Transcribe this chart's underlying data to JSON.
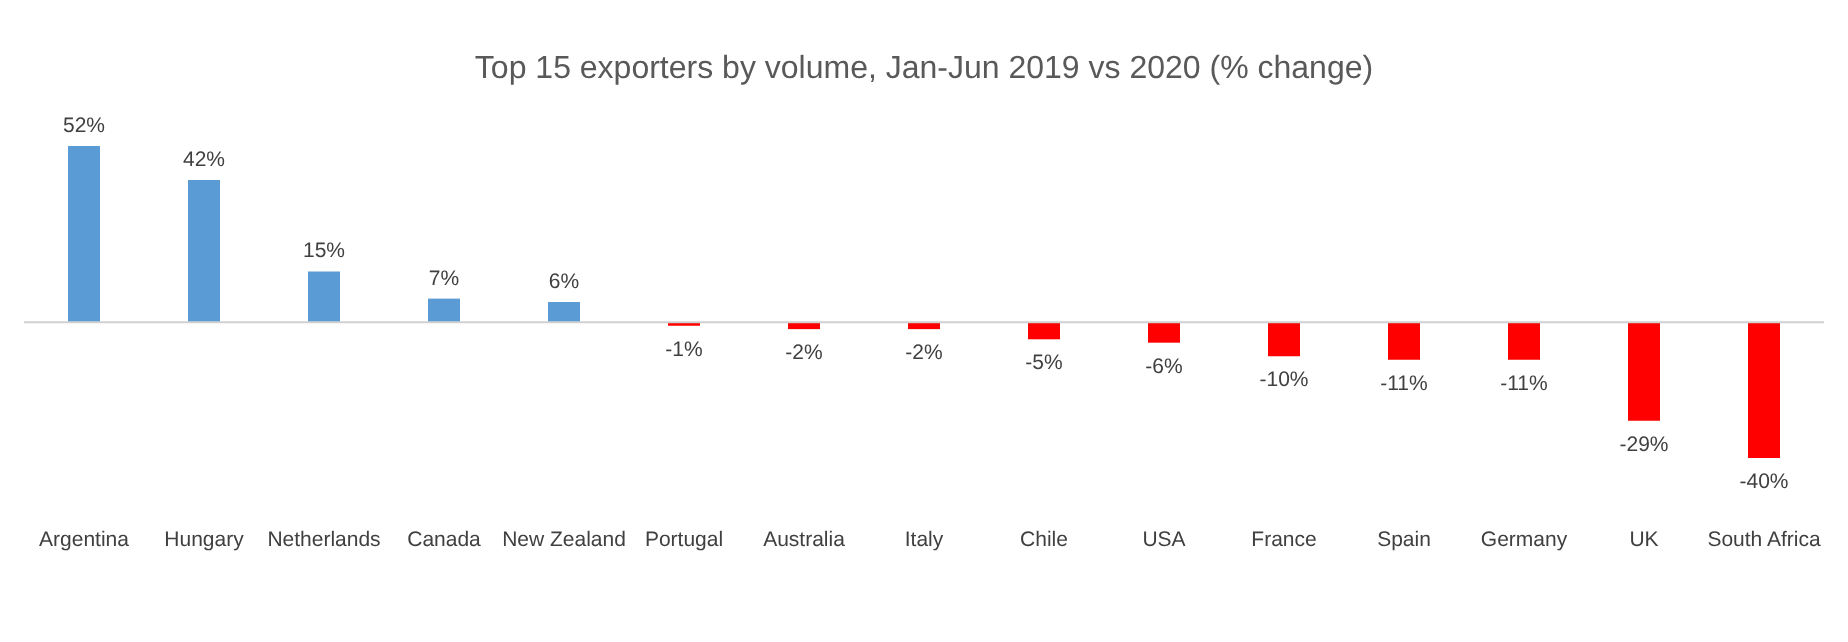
{
  "chart_data": {
    "type": "bar",
    "title": "Top 15 exporters by volume, Jan-Jun 2019 vs 2020 (% change)",
    "categories": [
      "Argentina",
      "Hungary",
      "Netherlands",
      "Canada",
      "New Zealand",
      "Portugal",
      "Australia",
      "Italy",
      "Chile",
      "USA",
      "France",
      "Spain",
      "Germany",
      "UK",
      "South Africa"
    ],
    "values": [
      52,
      42,
      15,
      7,
      6,
      -1,
      -2,
      -2,
      -5,
      -6,
      -10,
      -11,
      -11,
      -29,
      -40
    ],
    "value_labels": [
      "52%",
      "42%",
      "15%",
      "7%",
      "6%",
      "-1%",
      "-2%",
      "-2%",
      "-5%",
      "-6%",
      "-10%",
      "-11%",
      "-11%",
      "-29%",
      "-40%"
    ],
    "colors": [
      "#5b9bd5",
      "#5b9bd5",
      "#5b9bd5",
      "#5b9bd5",
      "#5b9bd5",
      "#ff0000",
      "#ff0000",
      "#ff0000",
      "#ff0000",
      "#ff0000",
      "#ff0000",
      "#ff0000",
      "#ff0000",
      "#ff0000",
      "#ff0000"
    ]
  }
}
